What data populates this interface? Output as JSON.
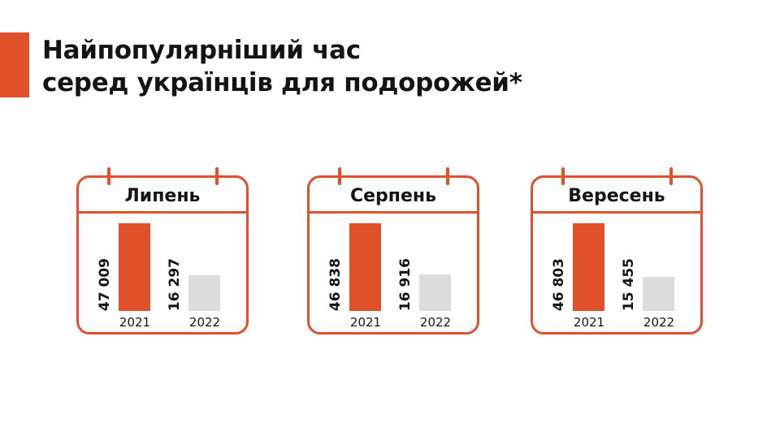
{
  "title_line1": "Найпопулярніший час",
  "title_line2": "серед українців для подорожей*",
  "colors": {
    "accent": "#e0502a",
    "y2021": "#e0502a",
    "y2022": "#dcdcdc"
  },
  "chart_data": {
    "type": "bar",
    "title": "Найпопулярніший час серед українців для подорожей*",
    "categories": [
      "2021",
      "2022"
    ],
    "panels": [
      {
        "month": "Липень",
        "values": [
          47009,
          16297
        ],
        "labels": [
          "47 009",
          "16 297"
        ]
      },
      {
        "month": "Серпень",
        "values": [
          46838,
          16916
        ],
        "labels": [
          "46 838",
          "16 916"
        ]
      },
      {
        "month": "Вересень",
        "values": [
          46803,
          15455
        ],
        "labels": [
          "46 803",
          "15 455"
        ]
      }
    ]
  }
}
